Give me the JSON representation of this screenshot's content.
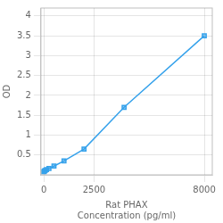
{
  "chart_data": {
    "type": "line",
    "x": [
      0,
      31.25,
      62.5,
      125,
      250,
      500,
      1000,
      2000,
      4000,
      8000
    ],
    "values": [
      0.08,
      0.1,
      0.11,
      0.13,
      0.16,
      0.22,
      0.35,
      0.65,
      1.7,
      3.5
    ],
    "xlabel": [
      "Rat PHAX",
      "Concentration (pg/ml)"
    ],
    "ylabel": "OD",
    "xlim": [
      -150,
      8400
    ],
    "ylim": [
      0,
      4.2
    ],
    "xticks": [
      0,
      2500,
      8000
    ],
    "yticks": [
      0.5,
      1,
      1.5,
      2,
      2.5,
      3,
      3.5,
      4
    ],
    "grid": true,
    "marker": "square"
  }
}
